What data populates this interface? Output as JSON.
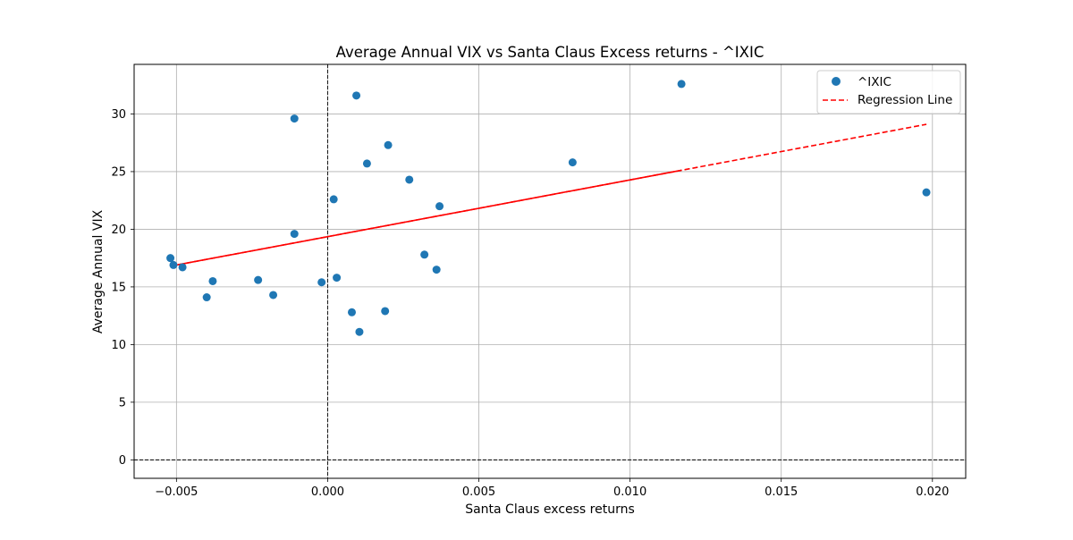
{
  "chart_data": {
    "type": "scatter",
    "title": "Average Annual VIX vs Santa Claus Excess returns - ^IXIC",
    "xlabel": "Santa Claus excess returns",
    "ylabel": "Average Annual VIX",
    "xlim": [
      -0.0064,
      0.0211
    ],
    "ylim": [
      -1.6,
      34.3
    ],
    "x_ticks": [
      -0.005,
      0.0,
      0.005,
      0.01,
      0.015,
      0.02
    ],
    "x_tick_labels": [
      "−0.005",
      "0.000",
      "0.005",
      "0.010",
      "0.015",
      "0.020"
    ],
    "y_ticks": [
      0,
      5,
      10,
      15,
      20,
      25,
      30
    ],
    "y_tick_labels": [
      "0",
      "5",
      "10",
      "15",
      "20",
      "25",
      "30"
    ],
    "grid": true,
    "reference_lines": {
      "horizontal_at": 0,
      "vertical_at": 0,
      "style": "dashed",
      "color": "#000000"
    },
    "legend": {
      "placement": "top-right",
      "entries": [
        "^IXIC",
        "Regression Line"
      ]
    },
    "series": [
      {
        "name": "^IXIC",
        "type": "scatter",
        "color": "#1f77b4",
        "points": [
          [
            -0.0052,
            17.5
          ],
          [
            -0.0051,
            16.9
          ],
          [
            -0.0048,
            16.7
          ],
          [
            -0.004,
            14.1
          ],
          [
            -0.0038,
            15.5
          ],
          [
            -0.0023,
            15.6
          ],
          [
            -0.0018,
            14.3
          ],
          [
            -0.0011,
            29.6
          ],
          [
            -0.0011,
            19.6
          ],
          [
            -0.0002,
            15.4
          ],
          [
            0.0002,
            22.6
          ],
          [
            0.0003,
            15.8
          ],
          [
            0.0008,
            12.8
          ],
          [
            0.00095,
            31.6
          ],
          [
            0.00105,
            11.1
          ],
          [
            0.0013,
            25.7
          ],
          [
            0.0019,
            12.9
          ],
          [
            0.002,
            27.3
          ],
          [
            0.0027,
            24.3
          ],
          [
            0.0032,
            17.8
          ],
          [
            0.0036,
            16.5
          ],
          [
            0.0037,
            22.0
          ],
          [
            0.0081,
            25.8
          ],
          [
            0.0117,
            32.6
          ],
          [
            0.0198,
            23.2
          ]
        ]
      },
      {
        "name": "Regression Line",
        "type": "line",
        "style": "dashed",
        "color": "#ff0000",
        "points": [
          [
            -0.0052,
            16.8
          ],
          [
            0.0198,
            29.1
          ]
        ]
      }
    ]
  }
}
